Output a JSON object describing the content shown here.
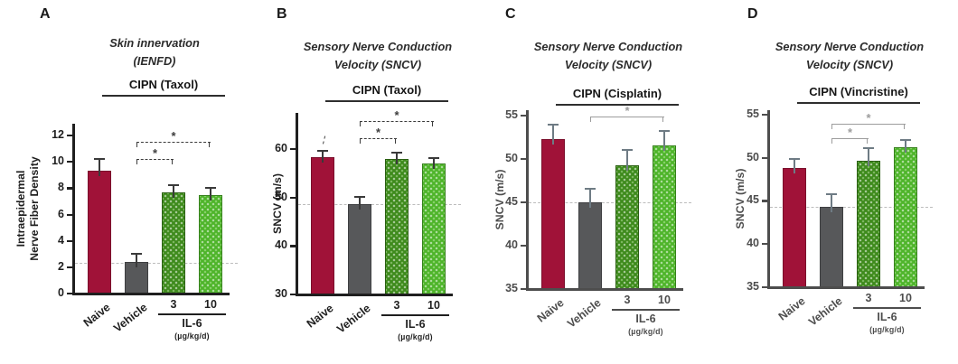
{
  "figure": {
    "background": "#ffffff"
  },
  "style": {
    "bar_color_keys": [
      "naive",
      "vehicle",
      "il6_low",
      "il6_high"
    ],
    "bar_dotted": [
      false,
      false,
      true,
      true
    ],
    "colors": {
      "naive": "#a01238",
      "naive_border": "#7a0e2b",
      "vehicle": "#57585a",
      "vehicle_border": "#3e3f41",
      "il6_low": "#3e8a1c",
      "il6_low_border": "#2a5f12",
      "il6_high": "#4eb42a",
      "il6_high_border": "#35801b",
      "bracket_dashed": "#3c3c3c",
      "bracket_solid": "#9c9c9c",
      "baseline": "#bcbcbc",
      "error_bar_dark": "#3a3a3a",
      "error_bar_gray": "#6e7b84"
    }
  },
  "chart_data": [
    {
      "type": "bar",
      "panel_letter": "A",
      "title_lines": [
        "Skin innervation",
        "(IENFD)"
      ],
      "treatment_label": "CIPN (Taxol)",
      "ylabel_lines": [
        "Intraepidermal",
        "Nerve Fiber Density"
      ],
      "axis_color": "#1f1f1f",
      "ylim": [
        0,
        12.9
      ],
      "yticks": [
        0,
        2,
        4,
        6,
        8,
        10,
        12
      ],
      "categories": [
        "Naive",
        "Vehicle",
        "3",
        "10"
      ],
      "values": [
        9.3,
        2.4,
        7.7,
        7.5
      ],
      "errors": [
        0.9,
        0.6,
        0.5,
        0.5
      ],
      "baseline_y": 2.3,
      "brackets": [
        {
          "from": 1,
          "to": 2,
          "y": 10.2,
          "label": "*",
          "style": "dashed"
        },
        {
          "from": 1,
          "to": 3,
          "y": 11.5,
          "label": "*",
          "style": "dashed"
        }
      ],
      "group_label": "IL-6",
      "group_units": "(µg/kg/d)"
    },
    {
      "type": "bar",
      "panel_letter": "B",
      "title_lines": [
        "Sensory Nerve Conduction",
        "Velocity (SNCV)"
      ],
      "treatment_label": "CIPN (Taxol)",
      "ylabel_lines": [
        "SNCV (m/s)"
      ],
      "axis_color": "#1f1f1f",
      "ylim": [
        30,
        67.5
      ],
      "yticks": [
        30,
        40,
        50,
        60
      ],
      "categories": [
        "Naive",
        "Vehicle",
        "3",
        "10"
      ],
      "values": [
        58.3,
        48.6,
        57.9,
        57.0
      ],
      "errors": [
        1.3,
        1.5,
        1.4,
        1.2
      ],
      "baseline_y": 48.6,
      "brackets": [
        {
          "from": 1,
          "to": 2,
          "y": 62.2,
          "label": "*",
          "style": "dashed"
        },
        {
          "from": 1,
          "to": 3,
          "y": 65.8,
          "label": "*",
          "style": "dashed"
        }
      ],
      "group_label": "IL-6",
      "group_units": "(µg/kg/d)"
    },
    {
      "type": "bar",
      "panel_letter": "C",
      "title_lines": [
        "Sensory Nerve Conduction",
        "Velocity (SNCV)"
      ],
      "treatment_label": "CIPN (Cisplatin)",
      "ylabel_lines": [
        "SNCV (m/s)"
      ],
      "axis_color": "#4d4d4d",
      "ylim": [
        35,
        55.6
      ],
      "yticks": [
        35,
        40,
        45,
        50,
        55
      ],
      "categories": [
        "Naive",
        "Vehicle",
        "3",
        "10"
      ],
      "values": [
        52.3,
        45.0,
        49.3,
        51.5
      ],
      "errors": [
        1.6,
        1.6,
        1.7,
        1.7
      ],
      "baseline_y": 45.0,
      "brackets": [
        {
          "from": 1,
          "to": 3,
          "y": 54.9,
          "label": "*",
          "style": "solid"
        }
      ],
      "group_label": "IL-6",
      "group_units": "(µg/kg/d)"
    },
    {
      "type": "bar",
      "panel_letter": "D",
      "title_lines": [
        "Sensory Nerve Conduction",
        "Velocity (SNCV)"
      ],
      "treatment_label": "CIPN (Vincristine)",
      "ylabel_lines": [
        "SNCV (m/s)"
      ],
      "axis_color": "#4d4d4d",
      "ylim": [
        35,
        55.5
      ],
      "yticks": [
        35,
        40,
        45,
        50,
        55
      ],
      "categories": [
        "Naive",
        "Vehicle",
        "3",
        "10"
      ],
      "values": [
        48.8,
        44.3,
        49.6,
        51.2
      ],
      "errors": [
        1.0,
        1.5,
        1.5,
        0.9
      ],
      "baseline_y": 44.3,
      "brackets": [
        {
          "from": 1,
          "to": 2,
          "y": 52.3,
          "label": "*",
          "style": "solid"
        },
        {
          "from": 1,
          "to": 3,
          "y": 53.9,
          "label": "*",
          "style": "solid"
        }
      ],
      "group_label": "IL-6",
      "group_units": "(µg/kg/d)"
    }
  ]
}
